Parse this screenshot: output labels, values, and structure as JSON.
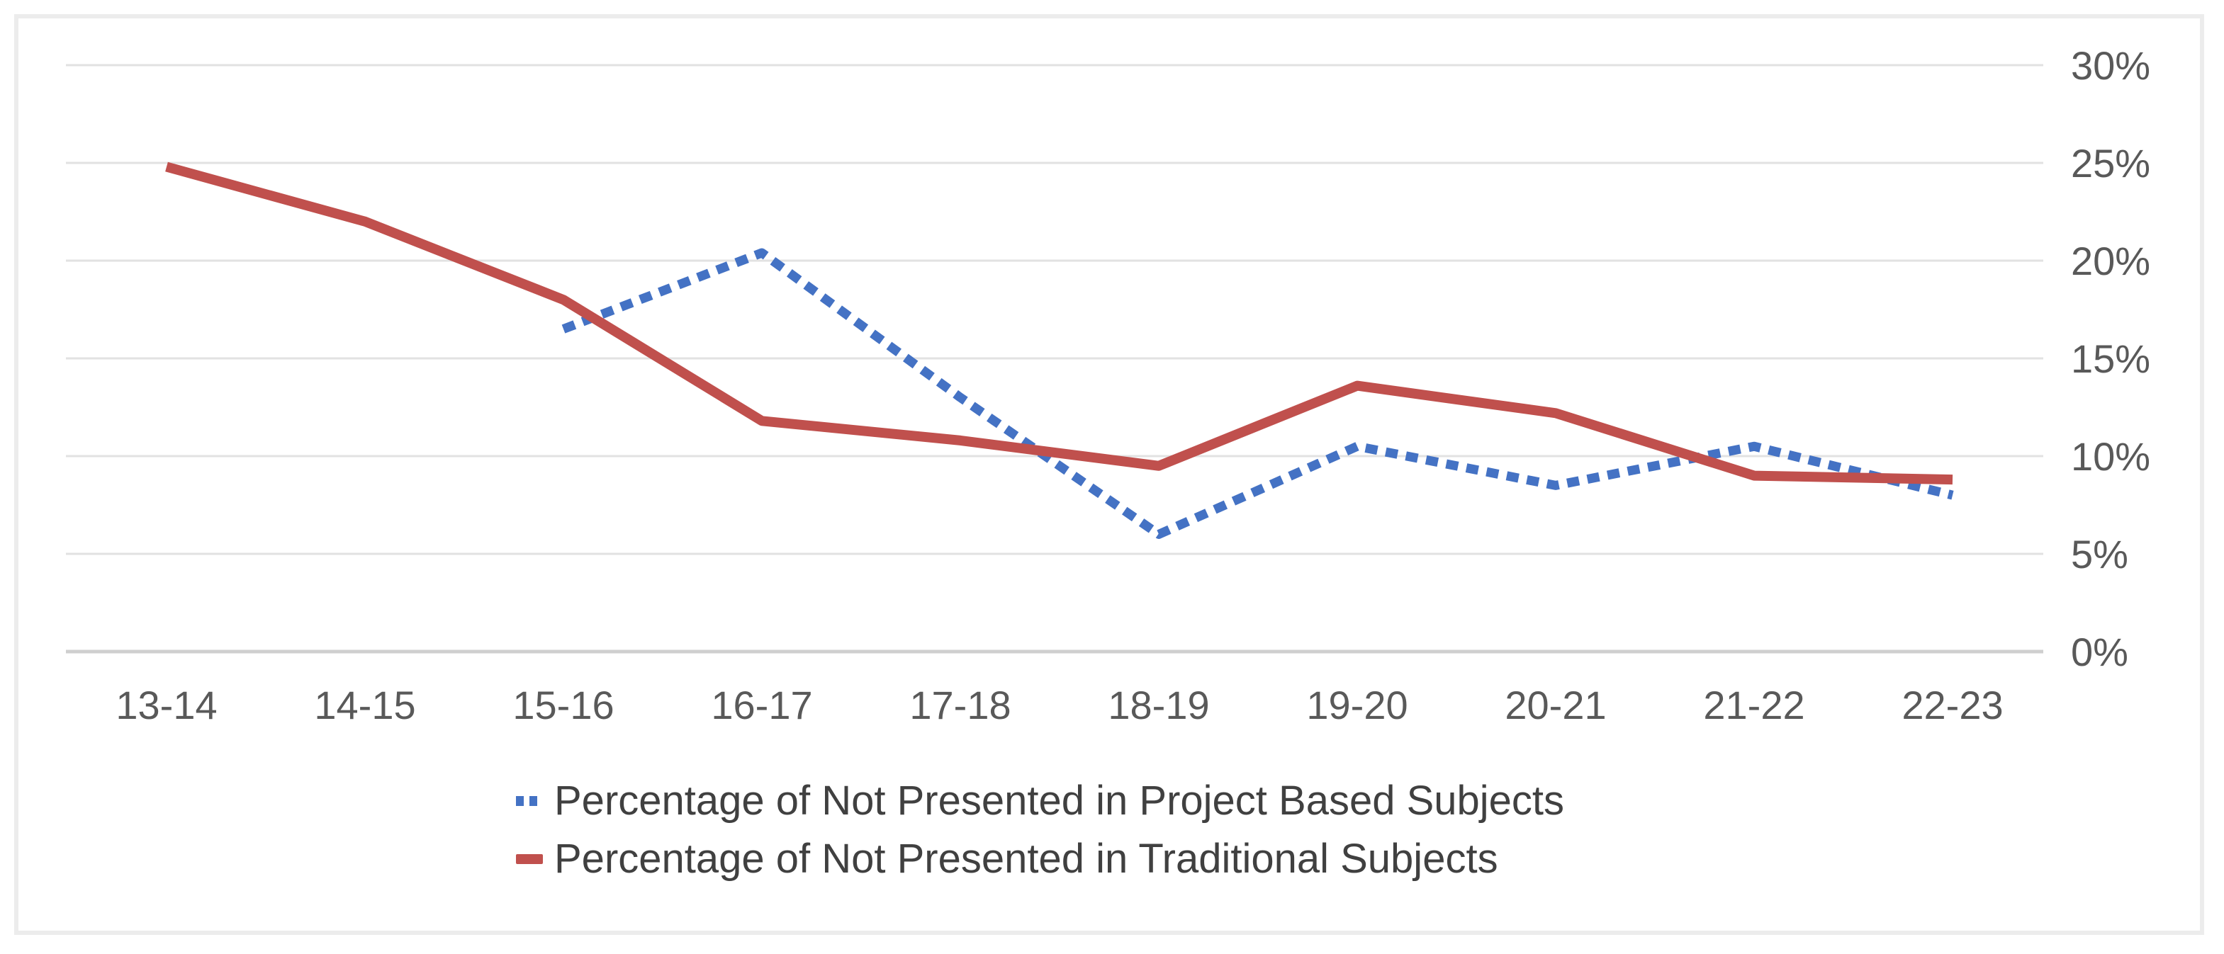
{
  "chart_data": {
    "type": "line",
    "title": "",
    "xlabel": "",
    "ylabel": "",
    "categories": [
      "13-14",
      "14-15",
      "15-16",
      "16-17",
      "17-18",
      "18-19",
      "19-20",
      "20-21",
      "21-22",
      "22-23"
    ],
    "series": [
      {
        "name": "Percentage of Not Presented in Project Based Subjects",
        "color": "#4472C4",
        "line_style": "dotted",
        "values": [
          null,
          null,
          16.5,
          20.4,
          13,
          6,
          10.5,
          8.5,
          10.5,
          8
        ]
      },
      {
        "name": "Percentage of Not Presented in Traditional Subjects",
        "color": "#C0504D",
        "line_style": "solid",
        "values": [
          24.8,
          22,
          18,
          11.8,
          10.8,
          9.5,
          13.6,
          12.2,
          9,
          8.8
        ]
      }
    ],
    "ylim": [
      0,
      30
    ],
    "y_tick_values": [
      0,
      5,
      10,
      15,
      20,
      25,
      30
    ],
    "y_tick_labels": [
      "0%",
      "5%",
      "10%",
      "15%",
      "20%",
      "25%",
      "30%"
    ],
    "y_axis_side": "right",
    "grid": "horizontal",
    "legend_position": "bottom",
    "colors": {
      "gridline": "#E2E2E2",
      "axis_line": "#CFCFCF",
      "axis_text": "#595959",
      "legend_text": "#404040",
      "frame_border": "#ECECEC"
    }
  }
}
